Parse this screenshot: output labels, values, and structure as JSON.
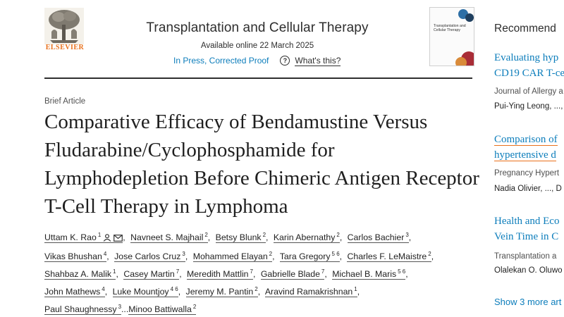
{
  "publisher": {
    "name": "ELSEVIER"
  },
  "journal": {
    "title": "Transplantation and Cellular Therapy",
    "available_online": "Available online 22 March 2025",
    "status_link": "In Press, Corrected Proof",
    "help_link": "What's this?",
    "cover_text": "Transplantation and Cellular Therapy"
  },
  "article": {
    "type": "Brief Article",
    "title": "Comparative Efficacy of Bendamustine Versus Fludarabine/Cyclophosphamide for Lymphodepletion Before Chimeric Antigen Receptor T-Cell Therapy in Lymphoma",
    "authors": [
      {
        "name": "Uttam K. Rao",
        "sup": "1"
      },
      {
        "name": "Navneet S. Majhail",
        "sup": "2"
      },
      {
        "name": "Betsy Blunk",
        "sup": "2"
      },
      {
        "name": "Karin Abernathy",
        "sup": "2"
      },
      {
        "name": "Carlos Bachier",
        "sup": "3"
      },
      {
        "name": "Vikas Bhushan",
        "sup": "4"
      },
      {
        "name": "Jose Carlos Cruz",
        "sup": "3"
      },
      {
        "name": "Mohammed Elayan",
        "sup": "2"
      },
      {
        "name": "Tara Gregory",
        "sup": "5 6"
      },
      {
        "name": "Charles F. LeMaistre",
        "sup": "2"
      },
      {
        "name": "Shahbaz A. Malik",
        "sup": "1"
      },
      {
        "name": "Casey Martin",
        "sup": "7"
      },
      {
        "name": "Meredith Mattlin",
        "sup": "7"
      },
      {
        "name": "Gabrielle Blade",
        "sup": "7"
      },
      {
        "name": "Michael B. Maris",
        "sup": "5 6"
      },
      {
        "name": "John Mathews",
        "sup": "4"
      },
      {
        "name": "Luke Mountjoy",
        "sup": "4 6"
      },
      {
        "name": "Jeremy M. Pantin",
        "sup": "2"
      },
      {
        "name": "Aravind Ramakrishnan",
        "sup": "1"
      },
      {
        "name": "Paul Shaughnessy",
        "sup": "3"
      },
      {
        "name": "Minoo Battiwalla",
        "sup": "2"
      }
    ],
    "ellipsis": "..."
  },
  "sidebar": {
    "heading": "Recommend",
    "items": [
      {
        "title_lines": [
          "Evaluating hyp",
          "CD19 CAR T-ce"
        ],
        "journal": "Journal of Allergy a",
        "authors": "Pui-Ying Leong, ..., "
      },
      {
        "title_lines": [
          "Comparison of",
          "hypertensive d"
        ],
        "journal": "Pregnancy Hypert",
        "authors": "Nadia Olivier, ..., D"
      },
      {
        "title_lines": [
          "Health and Eco",
          "Vein Time in C"
        ],
        "journal": "Transplantation a",
        "authors": "Olalekan O. Oluwo"
      }
    ],
    "show_more": "Show 3 more art"
  },
  "colors": {
    "link": "#0c7dbb",
    "brand_orange": "#e9711c",
    "text": "#1f1f1f"
  },
  "icons": [
    "elsevier-tree-logo",
    "help-circle-icon",
    "person-icon",
    "envelope-icon"
  ]
}
